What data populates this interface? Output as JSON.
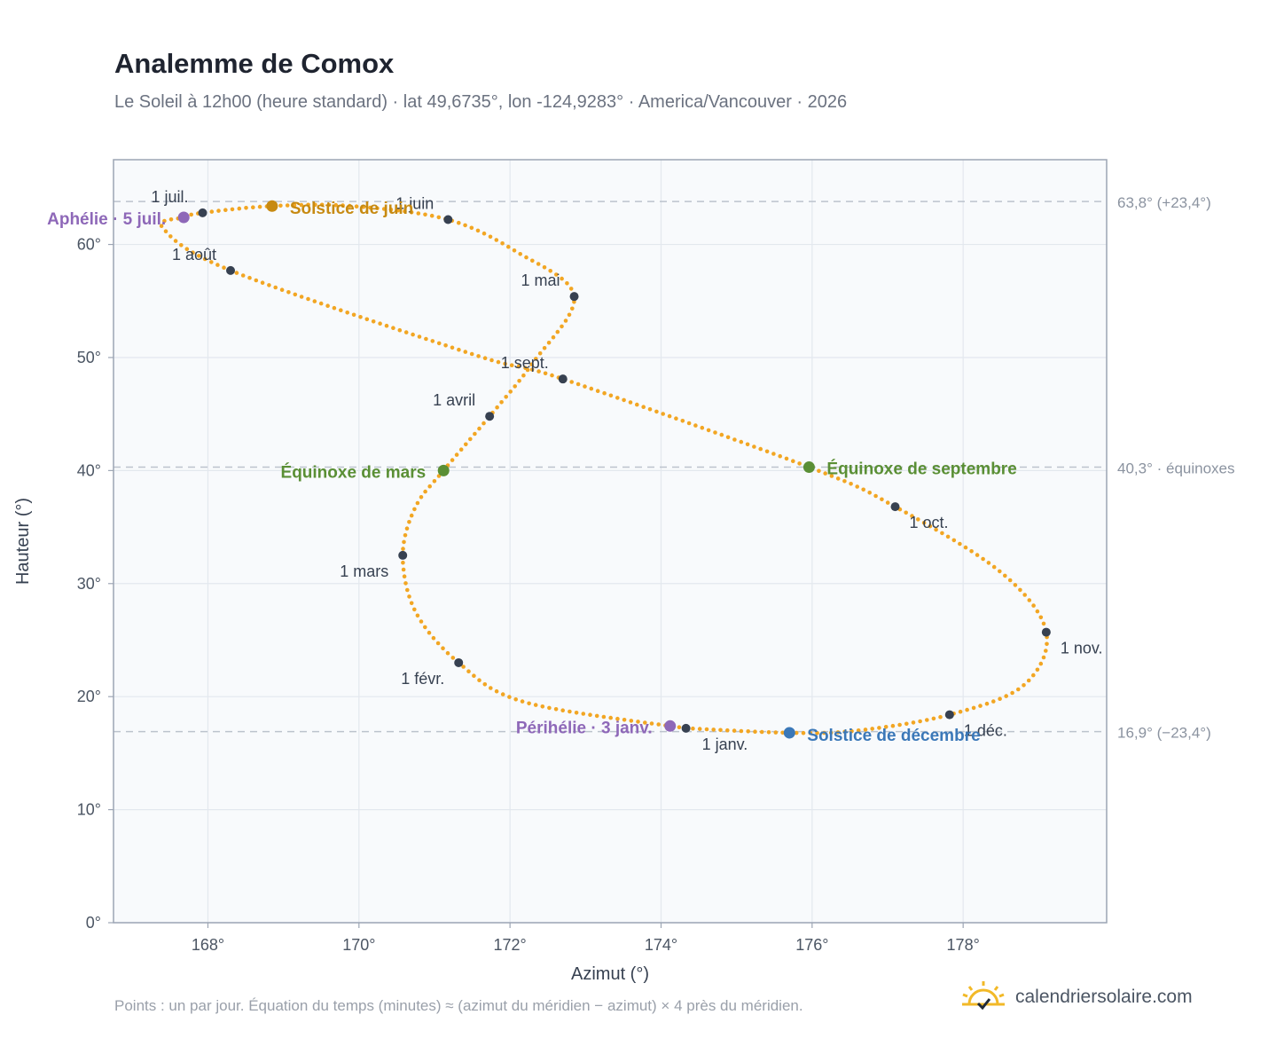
{
  "header": {
    "title": "Analemme de Comox",
    "subtitle": "Le Soleil à 12h00 (heure standard) · lat 49,6735°, lon -124,9283° · America/Vancouver · 2026"
  },
  "footer": {
    "note": "Points : un par jour. Équation du temps (minutes) ≈ (azimut du méridien − azimut) × 4 près du méridien.",
    "brand": "calendriersolaire.com",
    "brand_icon": "sun-check-icon"
  },
  "colors": {
    "curve": "#f2a623",
    "month_marker": "#374151",
    "solstice_june": "#c78a12",
    "solstice_december": "#3b78b8",
    "equinox": "#5a8f35",
    "apsis": "#8e68b8",
    "plot_bg": "#f8fafc",
    "grid": "#e3e8ee",
    "frame": "#9ca5b4"
  },
  "chart_data": {
    "type": "scatter",
    "xlabel": "Azimut (°)",
    "ylabel": "Hauteur (°)",
    "xlim": [
      166.75,
      179.9
    ],
    "ylim": [
      0,
      67.5
    ],
    "xticks": [
      168,
      170,
      172,
      174,
      176,
      178
    ],
    "xtick_labels": [
      "168°",
      "170°",
      "172°",
      "174°",
      "176°",
      "178°"
    ],
    "yticks": [
      0,
      10,
      20,
      30,
      40,
      50,
      60
    ],
    "ytick_labels": [
      "0°",
      "10°",
      "20°",
      "30°",
      "40°",
      "50°",
      "60°"
    ],
    "grid": true,
    "series": [
      {
        "anchors": [
          [
            174.33,
            17.2
          ],
          [
            172.2,
            19.5
          ],
          [
            171.32,
            23.0
          ],
          [
            170.75,
            27.5
          ],
          [
            170.58,
            32.5
          ],
          [
            170.75,
            36.8
          ],
          [
            171.12,
            40.0
          ],
          [
            171.73,
            44.8
          ],
          [
            172.3,
            49.5
          ],
          [
            172.85,
            55.4
          ],
          [
            172.1,
            59.3
          ],
          [
            171.18,
            62.2
          ],
          [
            169.9,
            63.4
          ],
          [
            168.85,
            63.4
          ],
          [
            167.93,
            62.8
          ],
          [
            167.68,
            62.4
          ],
          [
            167.4,
            61.5
          ],
          [
            168.3,
            57.7
          ],
          [
            171.5,
            50.3
          ],
          [
            172.7,
            48.1
          ],
          [
            175.96,
            40.3
          ],
          [
            177.1,
            36.8
          ],
          [
            178.5,
            31.0
          ],
          [
            179.1,
            25.7
          ],
          [
            178.8,
            21.0
          ],
          [
            177.82,
            18.4
          ],
          [
            176.6,
            17.0
          ],
          [
            175.7,
            16.8
          ],
          [
            174.33,
            17.2
          ]
        ],
        "days": 365
      }
    ],
    "month_markers": [
      {
        "label": "1 janv.",
        "x": 174.33,
        "y": 17.2
      },
      {
        "label": "1 févr.",
        "x": 171.32,
        "y": 23.0
      },
      {
        "label": "1 mars",
        "x": 170.58,
        "y": 32.5
      },
      {
        "label": "1 avril",
        "x": 171.73,
        "y": 44.8
      },
      {
        "label": "1 mai",
        "x": 172.85,
        "y": 55.4
      },
      {
        "label": "1 juin",
        "x": 171.18,
        "y": 62.2
      },
      {
        "label": "1 juil.",
        "x": 167.93,
        "y": 62.8
      },
      {
        "label": "1 août",
        "x": 168.3,
        "y": 57.7
      },
      {
        "label": "1 sept.",
        "x": 172.7,
        "y": 48.1
      },
      {
        "label": "1 oct.",
        "x": 177.1,
        "y": 36.8
      },
      {
        "label": "1 nov.",
        "x": 179.1,
        "y": 25.7
      },
      {
        "label": "1 déc.",
        "x": 177.82,
        "y": 18.4
      }
    ],
    "events": [
      {
        "label": "Solstice de juin",
        "x": 168.85,
        "y": 63.4,
        "color": "#c78a12"
      },
      {
        "label": "Solstice de décembre",
        "x": 175.7,
        "y": 16.8,
        "color": "#3b78b8"
      },
      {
        "label": "Équinoxe de mars",
        "x": 171.12,
        "y": 40.0,
        "color": "#5a8f35"
      },
      {
        "label": "Équinoxe de septembre",
        "x": 175.96,
        "y": 40.3,
        "color": "#5a8f35"
      },
      {
        "label": "Aphélie · 5 juil.",
        "x": 167.68,
        "y": 62.4,
        "color": "#8e68b8"
      },
      {
        "label": "Périhélie · 3 janv.",
        "x": 174.12,
        "y": 17.4,
        "color": "#8e68b8"
      }
    ],
    "reference_lines": [
      {
        "y": 63.8,
        "label": "63,8° (+23,4°)"
      },
      {
        "y": 40.3,
        "label": "40,3° · équinoxes"
      },
      {
        "y": 16.9,
        "label": "16,9° (−23,4°)"
      }
    ]
  }
}
